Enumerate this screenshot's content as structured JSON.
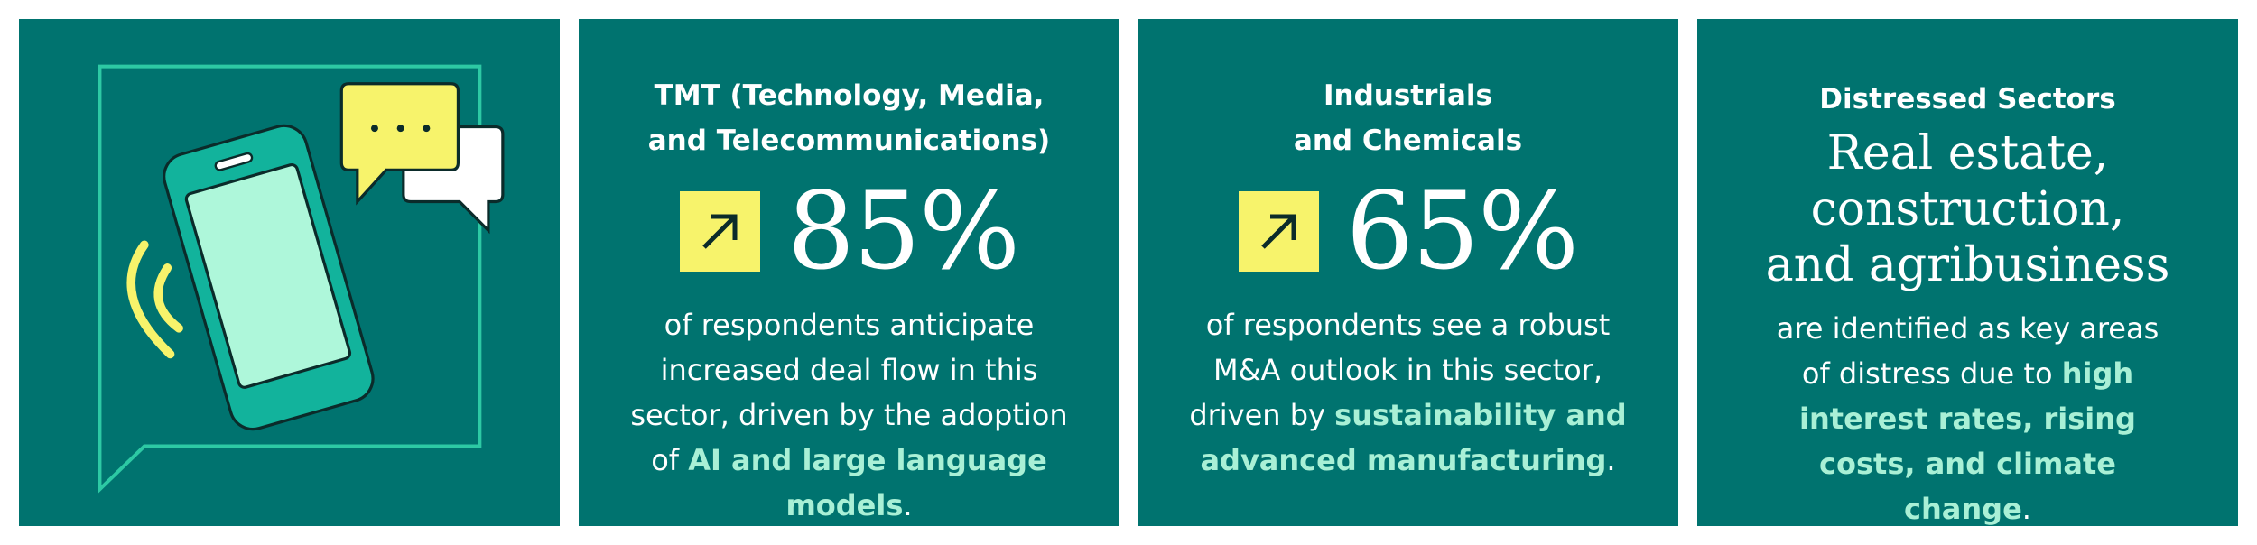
{
  "cards": [
    {
      "heading": [
        "TMT (Technology, Media,",
        "and Telecommunications)"
      ],
      "stat": "85%",
      "description": {
        "before": "of respondents anticipate increased deal flow in this sector, driven by the adoption of ",
        "highlight": "AI and large language models",
        "after": "."
      }
    },
    {
      "heading": [
        "Industrials",
        "and Chemicals"
      ],
      "stat": "65%",
      "description": {
        "before": "of respondents see a robust M&A outlook in this sector, driven by ",
        "highlight": "sustainability and advanced manufacturing",
        "after": "."
      }
    },
    {
      "heading": [
        "Distressed Sectors"
      ],
      "statement": [
        "Real estate,",
        "construction,",
        "and agribusiness"
      ],
      "description": {
        "before": "are identified as key areas of distress due to ",
        "highlight": "high interest rates, rising costs, and climate change",
        "after": "."
      }
    }
  ]
}
